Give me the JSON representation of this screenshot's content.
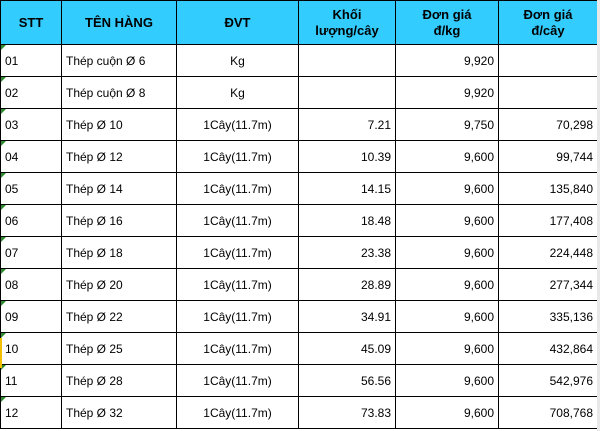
{
  "headers": {
    "stt": "STT",
    "ten_hang": "TÊN HÀNG",
    "dvt": "ĐVT",
    "khoi_luong_1": "Khối",
    "khoi_luong_2": "lượng/cây",
    "don_gia_kg_1": "Đơn giá",
    "don_gia_kg_2": "đ/kg",
    "don_gia_cay_1": "Đơn giá",
    "don_gia_cay_2": "đ/cây"
  },
  "rows": [
    {
      "stt": "01",
      "name": "Thép cuộn Ø 6",
      "unit": "Kg",
      "weight": "",
      "price_kg": "9,920",
      "price_tree": ""
    },
    {
      "stt": "02",
      "name": "Thép cuộn Ø 8",
      "unit": "Kg",
      "weight": "",
      "price_kg": "9,920",
      "price_tree": ""
    },
    {
      "stt": "03",
      "name": "Thép  Ø 10",
      "unit": "1Cây(11.7m)",
      "weight": "7.21",
      "price_kg": "9,750",
      "price_tree": "70,298"
    },
    {
      "stt": "04",
      "name": "Thép  Ø 12",
      "unit": "1Cây(11.7m)",
      "weight": "10.39",
      "price_kg": "9,600",
      "price_tree": "99,744"
    },
    {
      "stt": "05",
      "name": "Thép  Ø 14",
      "unit": "1Cây(11.7m)",
      "weight": "14.15",
      "price_kg": "9,600",
      "price_tree": "135,840"
    },
    {
      "stt": "06",
      "name": "Thép  Ø 16",
      "unit": "1Cây(11.7m)",
      "weight": "18.48",
      "price_kg": "9,600",
      "price_tree": "177,408"
    },
    {
      "stt": "07",
      "name": "Thép  Ø 18",
      "unit": "1Cây(11.7m)",
      "weight": "23.38",
      "price_kg": "9,600",
      "price_tree": "224,448"
    },
    {
      "stt": "08",
      "name": "Thép  Ø 20",
      "unit": "1Cây(11.7m)",
      "weight": "28.89",
      "price_kg": "9,600",
      "price_tree": "277,344"
    },
    {
      "stt": "09",
      "name": "Thép  Ø 22",
      "unit": "1Cây(11.7m)",
      "weight": "34.91",
      "price_kg": "9,600",
      "price_tree": "335,136"
    },
    {
      "stt": "10",
      "name": "Thép  Ø 25",
      "unit": "1Cây(11.7m)",
      "weight": "45.09",
      "price_kg": "9,600",
      "price_tree": "432,864"
    },
    {
      "stt": "11",
      "name": "Thép  Ø 28",
      "unit": "1Cây(11.7m)",
      "weight": "56.56",
      "price_kg": "9,600",
      "price_tree": "542,976"
    },
    {
      "stt": "12",
      "name": "Thép  Ø 32",
      "unit": "1Cây(11.7m)",
      "weight": "73.83",
      "price_kg": "9,600",
      "price_tree": "708,768"
    }
  ],
  "colors": {
    "header_bg": "#33ccff",
    "grid_line": "#000000",
    "error_flag": "#2e8b2e"
  }
}
